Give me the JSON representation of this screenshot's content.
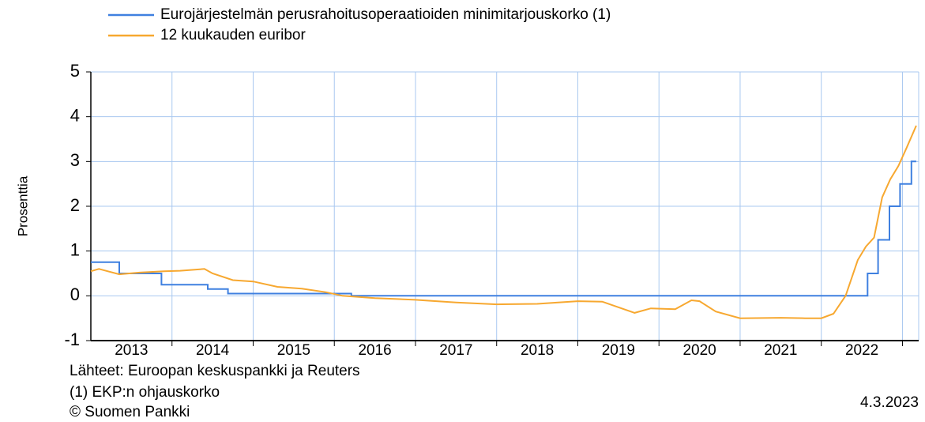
{
  "chart_data": {
    "type": "line",
    "y_label": "Prosenttia",
    "xlim": [
      2013,
      2023.2
    ],
    "ylim": [
      -1,
      5
    ],
    "yticks": [
      -1,
      0,
      1,
      2,
      3,
      4,
      5
    ],
    "xticks": [
      {
        "value": 2013.5,
        "label": "2013"
      },
      {
        "value": 2014.5,
        "label": "2014"
      },
      {
        "value": 2015.5,
        "label": "2015"
      },
      {
        "value": 2016.5,
        "label": "2016"
      },
      {
        "value": 2017.5,
        "label": "2017"
      },
      {
        "value": 2018.5,
        "label": "2018"
      },
      {
        "value": 2019.5,
        "label": "2019"
      },
      {
        "value": 2020.5,
        "label": "2020"
      },
      {
        "value": 2021.5,
        "label": "2021"
      },
      {
        "value": 2022.5,
        "label": "2022"
      }
    ],
    "xgrid": [
      2014,
      2015,
      2016,
      2017,
      2018,
      2019,
      2020,
      2021,
      2022,
      2023
    ],
    "grid": true,
    "series": [
      {
        "name": "Eurojärjestelmän perusrahoitusoperaatioiden minimitarjouskorko (1)",
        "color": "#3f80e0",
        "x": [
          2013,
          2013.35,
          2013.35,
          2013.87,
          2013.87,
          2014.44,
          2014.44,
          2014.69,
          2014.69,
          2016.21,
          2016.21,
          2022.57,
          2022.57,
          2022.7,
          2022.7,
          2022.84,
          2022.84,
          2022.97,
          2022.97,
          2023.11,
          2023.11,
          2023.17
        ],
        "values": [
          0.75,
          0.75,
          0.5,
          0.5,
          0.25,
          0.25,
          0.15,
          0.15,
          0.05,
          0.05,
          0,
          0,
          0.5,
          0.5,
          1.25,
          1.25,
          2,
          2,
          2.5,
          2.5,
          3,
          3
        ]
      },
      {
        "name": "12 kuukauden euribor",
        "color": "#f7a830",
        "x": [
          2013,
          2013.1,
          2013.35,
          2013.6,
          2013.9,
          2014.1,
          2014.4,
          2014.5,
          2014.75,
          2015.0,
          2015.3,
          2015.6,
          2015.9,
          2016.1,
          2016.5,
          2017.0,
          2017.5,
          2018.0,
          2018.5,
          2019.0,
          2019.3,
          2019.7,
          2019.9,
          2020.2,
          2020.4,
          2020.5,
          2020.7,
          2021.0,
          2021.5,
          2021.8,
          2022.0,
          2022.15,
          2022.3,
          2022.45,
          2022.55,
          2022.65,
          2022.75,
          2022.85,
          2022.95,
          2023.05,
          2023.17
        ],
        "values": [
          0.55,
          0.6,
          0.48,
          0.52,
          0.55,
          0.56,
          0.6,
          0.5,
          0.35,
          0.32,
          0.2,
          0.16,
          0.08,
          0.0,
          -0.05,
          -0.09,
          -0.15,
          -0.19,
          -0.18,
          -0.12,
          -0.13,
          -0.38,
          -0.28,
          -0.3,
          -0.1,
          -0.12,
          -0.35,
          -0.5,
          -0.49,
          -0.5,
          -0.5,
          -0.4,
          0.0,
          0.8,
          1.1,
          1.3,
          2.2,
          2.6,
          2.9,
          3.3,
          3.8
        ]
      }
    ],
    "notes": [
      "Lähteet: Euroopan keskuspankki ja Reuters",
      "(1) EKP:n ohjauskorko",
      "© Suomen Pankki"
    ],
    "date": "4.3.2023"
  }
}
